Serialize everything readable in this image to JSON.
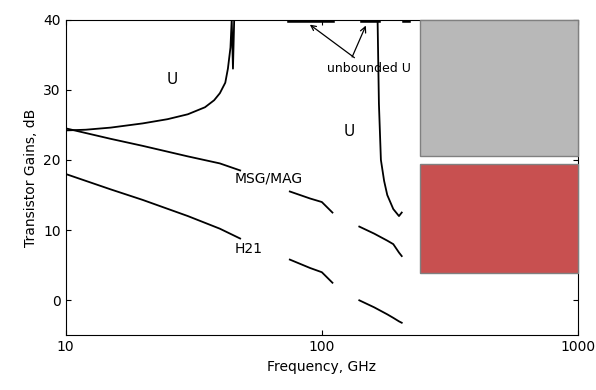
{
  "chart_data": {
    "type": "line",
    "x_label": "Frequency, GHz",
    "y_label": "Transistor Gains, dB",
    "log": "x",
    "xlim": [
      10,
      1000
    ],
    "xticks": [
      10,
      100,
      1000
    ],
    "ylim": [
      -5,
      40
    ],
    "yticks": [
      0,
      10,
      20,
      30,
      40
    ],
    "grid": false,
    "annotations": [
      "U",
      "U",
      "MSG/MAG",
      "H21",
      "unbounded U"
    ],
    "series": [
      {
        "name": "U",
        "color": "#000000",
        "line_style": "solid",
        "x": [
          10,
          12,
          15,
          20,
          25,
          30,
          35,
          38,
          40,
          42,
          43,
          44,
          44.5,
          45,
          45.5,
          46,
          null,
          165,
          167,
          170,
          175,
          180,
          190,
          200,
          205
        ],
        "values": [
          24.2,
          24.3,
          24.6,
          25.2,
          25.8,
          26.5,
          27.5,
          28.5,
          29.5,
          31,
          33,
          36,
          40,
          33,
          40,
          40,
          null,
          40,
          28,
          20,
          17,
          15,
          13,
          12,
          12.5
        ]
      },
      {
        "name": "MSG/MAG",
        "color": "#000000",
        "line_style": "solid",
        "x": [
          10,
          15,
          20,
          30,
          40,
          48,
          null,
          75,
          90,
          100,
          110,
          null,
          140,
          160,
          180,
          190,
          200,
          205
        ],
        "values": [
          24.5,
          23,
          22,
          20.5,
          19.5,
          18.5,
          null,
          15.5,
          14.5,
          14,
          12.5,
          null,
          10.5,
          9.5,
          8.5,
          8,
          6.8,
          6.3
        ]
      },
      {
        "name": "H21",
        "color": "#000000",
        "line_style": "solid",
        "x": [
          10,
          15,
          20,
          30,
          40,
          48,
          null,
          75,
          90,
          100,
          110,
          null,
          140,
          160,
          180,
          190,
          200,
          205
        ],
        "values": [
          18,
          15.8,
          14.3,
          12,
          10.2,
          8.8,
          null,
          5.8,
          4.6,
          4,
          2.5,
          null,
          0,
          -1,
          -2,
          -2.5,
          -3,
          -3.2
        ]
      },
      {
        "name": "unbounded U",
        "color": "#000000",
        "line_style": "solid",
        "x": [
          75,
          110,
          null,
          145,
          165,
          null,
          212,
          216
        ],
        "values": [
          40,
          40,
          null,
          40,
          40,
          null,
          40,
          40
        ]
      }
    ]
  }
}
